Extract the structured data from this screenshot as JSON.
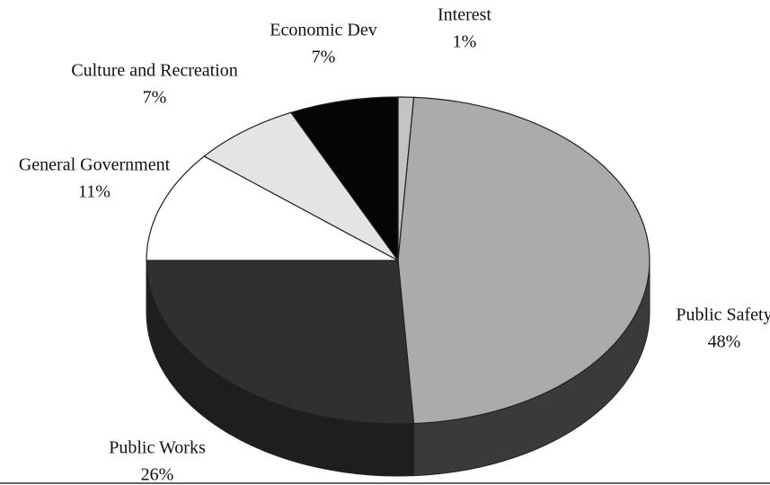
{
  "chart_data": {
    "type": "pie",
    "categories": [
      "Interest",
      "Public Safety",
      "Public Works",
      "General Government",
      "Culture and Recreation",
      "Economic Dev"
    ],
    "values": [
      1,
      48,
      26,
      11,
      7,
      7
    ],
    "value_labels": [
      "1%",
      "48%",
      "26%",
      "11%",
      "7%",
      "7%"
    ],
    "colors": [
      "#c4c4c4",
      "#ababab",
      "#303030",
      "#ffffff",
      "#e4e4e4",
      "#050505"
    ],
    "side_colors": [
      "#8a8a8a",
      "#3a3a3a",
      "#1e1e1e",
      "#c0c0c0",
      "#b0b0b0",
      "#000000"
    ]
  }
}
